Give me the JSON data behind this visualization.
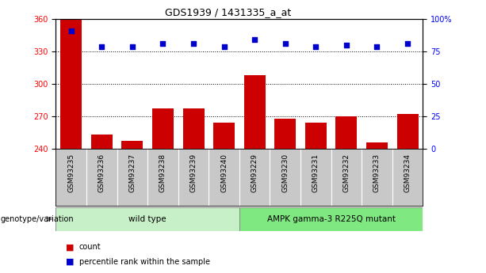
{
  "title": "GDS1939 / 1431335_a_at",
  "categories": [
    "GSM93235",
    "GSM93236",
    "GSM93237",
    "GSM93238",
    "GSM93239",
    "GSM93240",
    "GSM93229",
    "GSM93230",
    "GSM93231",
    "GSM93232",
    "GSM93233",
    "GSM93234"
  ],
  "count_values": [
    360,
    253,
    247,
    277,
    277,
    264,
    308,
    268,
    264,
    270,
    246,
    272
  ],
  "percentile_values": [
    91,
    79,
    79,
    81,
    81,
    79,
    84,
    81,
    79,
    80,
    79,
    81
  ],
  "ylim_left": [
    240,
    360
  ],
  "ylim_right": [
    0,
    100
  ],
  "yticks_left": [
    240,
    270,
    300,
    330,
    360
  ],
  "yticks_right": [
    0,
    25,
    50,
    75,
    100
  ],
  "bar_color": "#cc0000",
  "dot_color": "#0000cc",
  "bg_color": "#ffffff",
  "tick_area_color": "#c8c8c8",
  "wt_label": "wild type",
  "mut_label": "AMPK gamma-3 R225Q mutant",
  "wt_color": "#c8f0c8",
  "mut_color": "#80e880",
  "legend_count_label": "count",
  "legend_pct_label": "percentile rank within the sample",
  "genotype_label": "genotype/variation"
}
